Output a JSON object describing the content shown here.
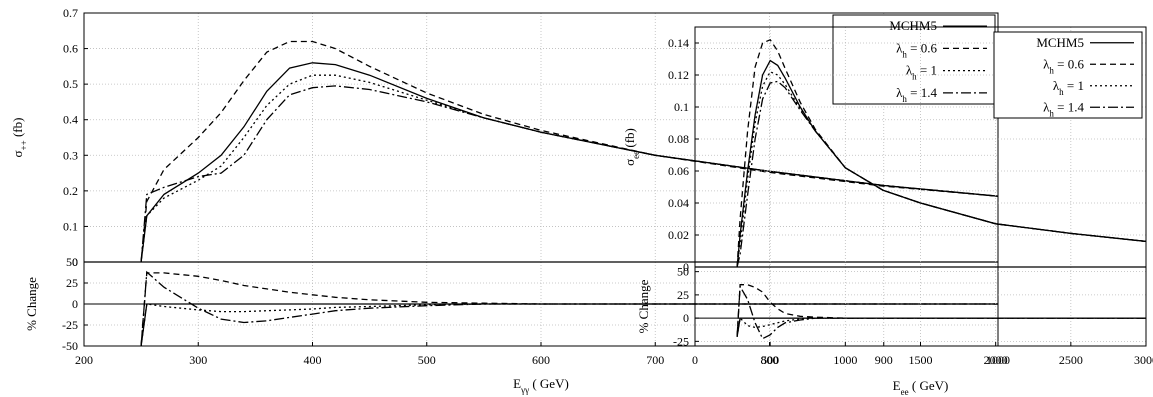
{
  "chart_data": [
    {
      "type": "line",
      "title": "",
      "xlabel": "E",
      "xlabel_sub": "γγ",
      "xlabel_unit": "( GeV)",
      "ylabel": "σ",
      "ylabel_sub": "++",
      "ylabel_unit": "(fb)",
      "ratio_ylabel": "% Change",
      "xlim": [
        200,
        1000
      ],
      "ylim": [
        0,
        0.7
      ],
      "ratio_ylim": [
        -50,
        50
      ],
      "x_ticks": [
        "200",
        "300",
        "400",
        "500",
        "600",
        "700",
        "800",
        "900",
        "1000"
      ],
      "y_ticks": [
        "0",
        "0.1",
        "0.2",
        "0.3",
        "0.4",
        "0.5",
        "0.6",
        "0.7"
      ],
      "ratio_ticks": [
        "50",
        "25",
        "0",
        "-25",
        "-50"
      ],
      "grid": true,
      "legend_position": "top-right",
      "series": [
        {
          "name": "MCHM5",
          "name_sub": "",
          "name_suffix": "",
          "dash": "solid",
          "x": [
            250,
            255,
            270,
            300,
            320,
            340,
            360,
            380,
            400,
            420,
            450,
            500,
            550,
            600,
            700,
            800,
            900,
            1000
          ],
          "y": [
            0,
            0.13,
            0.19,
            0.25,
            0.3,
            0.38,
            0.48,
            0.545,
            0.56,
            0.555,
            0.525,
            0.46,
            0.405,
            0.365,
            0.3,
            0.255,
            0.215,
            0.185
          ],
          "ratio": [
            -50,
            0,
            0,
            0,
            0,
            0,
            0,
            0,
            0,
            0,
            0,
            0,
            0,
            0,
            0,
            0,
            0,
            0
          ]
        },
        {
          "name": "λ",
          "name_sub": "h",
          "name_suffix": " = 0.6",
          "dash": "dashed",
          "x": [
            250,
            255,
            270,
            300,
            320,
            340,
            360,
            380,
            400,
            420,
            450,
            500,
            550,
            600,
            700,
            800,
            900,
            1000
          ],
          "y": [
            0,
            0.17,
            0.26,
            0.35,
            0.42,
            0.51,
            0.59,
            0.62,
            0.62,
            0.6,
            0.55,
            0.475,
            0.415,
            0.37,
            0.3,
            0.252,
            0.213,
            0.185
          ],
          "ratio": [
            -50,
            37,
            37,
            33,
            28,
            22,
            18,
            14,
            11,
            8,
            5,
            2,
            1,
            0,
            0,
            0,
            0,
            0
          ]
        },
        {
          "name": "λ",
          "name_sub": "h",
          "name_suffix": " = 1",
          "dash": "dotted",
          "x": [
            250,
            255,
            270,
            300,
            320,
            340,
            360,
            380,
            400,
            420,
            450,
            500,
            550,
            600,
            700,
            800,
            900,
            1000
          ],
          "y": [
            0,
            0.13,
            0.18,
            0.23,
            0.27,
            0.35,
            0.44,
            0.5,
            0.525,
            0.525,
            0.505,
            0.455,
            0.405,
            0.365,
            0.3,
            0.255,
            0.215,
            0.185
          ],
          "ratio": [
            -50,
            0,
            -3,
            -7,
            -9,
            -9,
            -8,
            -7,
            -6,
            -4,
            -3,
            -1,
            0,
            0,
            0,
            0,
            0,
            0
          ]
        },
        {
          "name": "λ",
          "name_sub": "h",
          "name_suffix": " = 1.4",
          "dash": "dashdot",
          "x": [
            250,
            255,
            270,
            300,
            320,
            340,
            360,
            380,
            400,
            420,
            450,
            500,
            550,
            600,
            700,
            800,
            900,
            1000
          ],
          "y": [
            0,
            0.19,
            0.21,
            0.24,
            0.25,
            0.3,
            0.4,
            0.47,
            0.49,
            0.495,
            0.485,
            0.45,
            0.405,
            0.365,
            0.3,
            0.255,
            0.215,
            0.185
          ],
          "ratio": [
            -50,
            38,
            20,
            -5,
            -18,
            -22,
            -20,
            -16,
            -12,
            -8,
            -5,
            -2,
            0,
            0,
            0,
            0,
            0,
            0
          ]
        }
      ]
    },
    {
      "type": "line",
      "title": "",
      "xlabel": "E",
      "xlabel_sub": "ee",
      "xlabel_unit": "( GeV)",
      "ylabel": "σ",
      "ylabel_sub": "ee",
      "ylabel_unit": "(fb)",
      "ratio_ylabel": "% Change",
      "xlim": [
        0,
        3000
      ],
      "ylim": [
        0,
        0.15
      ],
      "ratio_ylim": [
        -30,
        55
      ],
      "x_ticks": [
        "0",
        "500",
        "1000",
        "1500",
        "2000",
        "2500",
        "3000"
      ],
      "y_ticks": [
        "0",
        "0.02",
        "0.04",
        "0.06",
        "0.08",
        "0.1",
        "0.12",
        "0.14"
      ],
      "ratio_ticks": [
        "50",
        "25",
        "0",
        "-25"
      ],
      "grid": true,
      "legend_position": "top-right",
      "series": [
        {
          "name": "MCHM5",
          "name_sub": "",
          "name_suffix": "",
          "dash": "solid",
          "x": [
            280,
            300,
            350,
            400,
            450,
            500,
            550,
            600,
            700,
            800,
            1000,
            1250,
            1500,
            2000,
            2500,
            3000
          ],
          "y": [
            0,
            0.02,
            0.06,
            0.095,
            0.12,
            0.129,
            0.126,
            0.118,
            0.1,
            0.085,
            0.062,
            0.048,
            0.04,
            0.027,
            0.021,
            0.016
          ],
          "ratio": [
            -20,
            0,
            0,
            0,
            0,
            0,
            0,
            0,
            0,
            0,
            0,
            0,
            0,
            0,
            0,
            0
          ]
        },
        {
          "name": "λ",
          "name_sub": "h",
          "name_suffix": " = 0.6",
          "dash": "dashed",
          "x": [
            280,
            300,
            350,
            400,
            450,
            500,
            550,
            600,
            700,
            800,
            1000,
            1250,
            1500,
            2000,
            2500,
            3000
          ],
          "y": [
            0,
            0.03,
            0.085,
            0.125,
            0.14,
            0.142,
            0.135,
            0.124,
            0.103,
            0.086,
            0.062,
            0.048,
            0.04,
            0.027,
            0.021,
            0.016
          ],
          "ratio": [
            -20,
            36,
            36,
            33,
            28,
            17,
            10,
            5,
            2,
            1,
            0,
            0,
            0,
            0,
            0,
            0
          ]
        },
        {
          "name": "λ",
          "name_sub": "h",
          "name_suffix": " = 1",
          "dash": "dotted",
          "x": [
            280,
            300,
            350,
            400,
            450,
            500,
            550,
            600,
            700,
            800,
            1000,
            1250,
            1500,
            2000,
            2500,
            3000
          ],
          "y": [
            0,
            0.015,
            0.055,
            0.09,
            0.113,
            0.122,
            0.12,
            0.114,
            0.099,
            0.085,
            0.062,
            0.048,
            0.04,
            0.027,
            0.021,
            0.016
          ],
          "ratio": [
            -20,
            0,
            -8,
            -10,
            -9,
            -7,
            -5,
            -3,
            -1,
            0,
            0,
            0,
            0,
            0,
            0,
            0
          ]
        },
        {
          "name": "λ",
          "name_sub": "h",
          "name_suffix": " = 1.4",
          "dash": "dashdot",
          "x": [
            280,
            300,
            350,
            400,
            450,
            500,
            550,
            600,
            700,
            800,
            1000,
            1250,
            1500,
            2000,
            2500,
            3000
          ],
          "y": [
            0,
            0.008,
            0.045,
            0.08,
            0.105,
            0.115,
            0.116,
            0.112,
            0.098,
            0.085,
            0.062,
            0.048,
            0.04,
            0.027,
            0.021,
            0.016
          ],
          "ratio": [
            -20,
            34,
            20,
            -5,
            -22,
            -18,
            -10,
            -5,
            -2,
            0,
            0,
            0,
            0,
            0,
            0,
            0
          ]
        }
      ]
    }
  ]
}
